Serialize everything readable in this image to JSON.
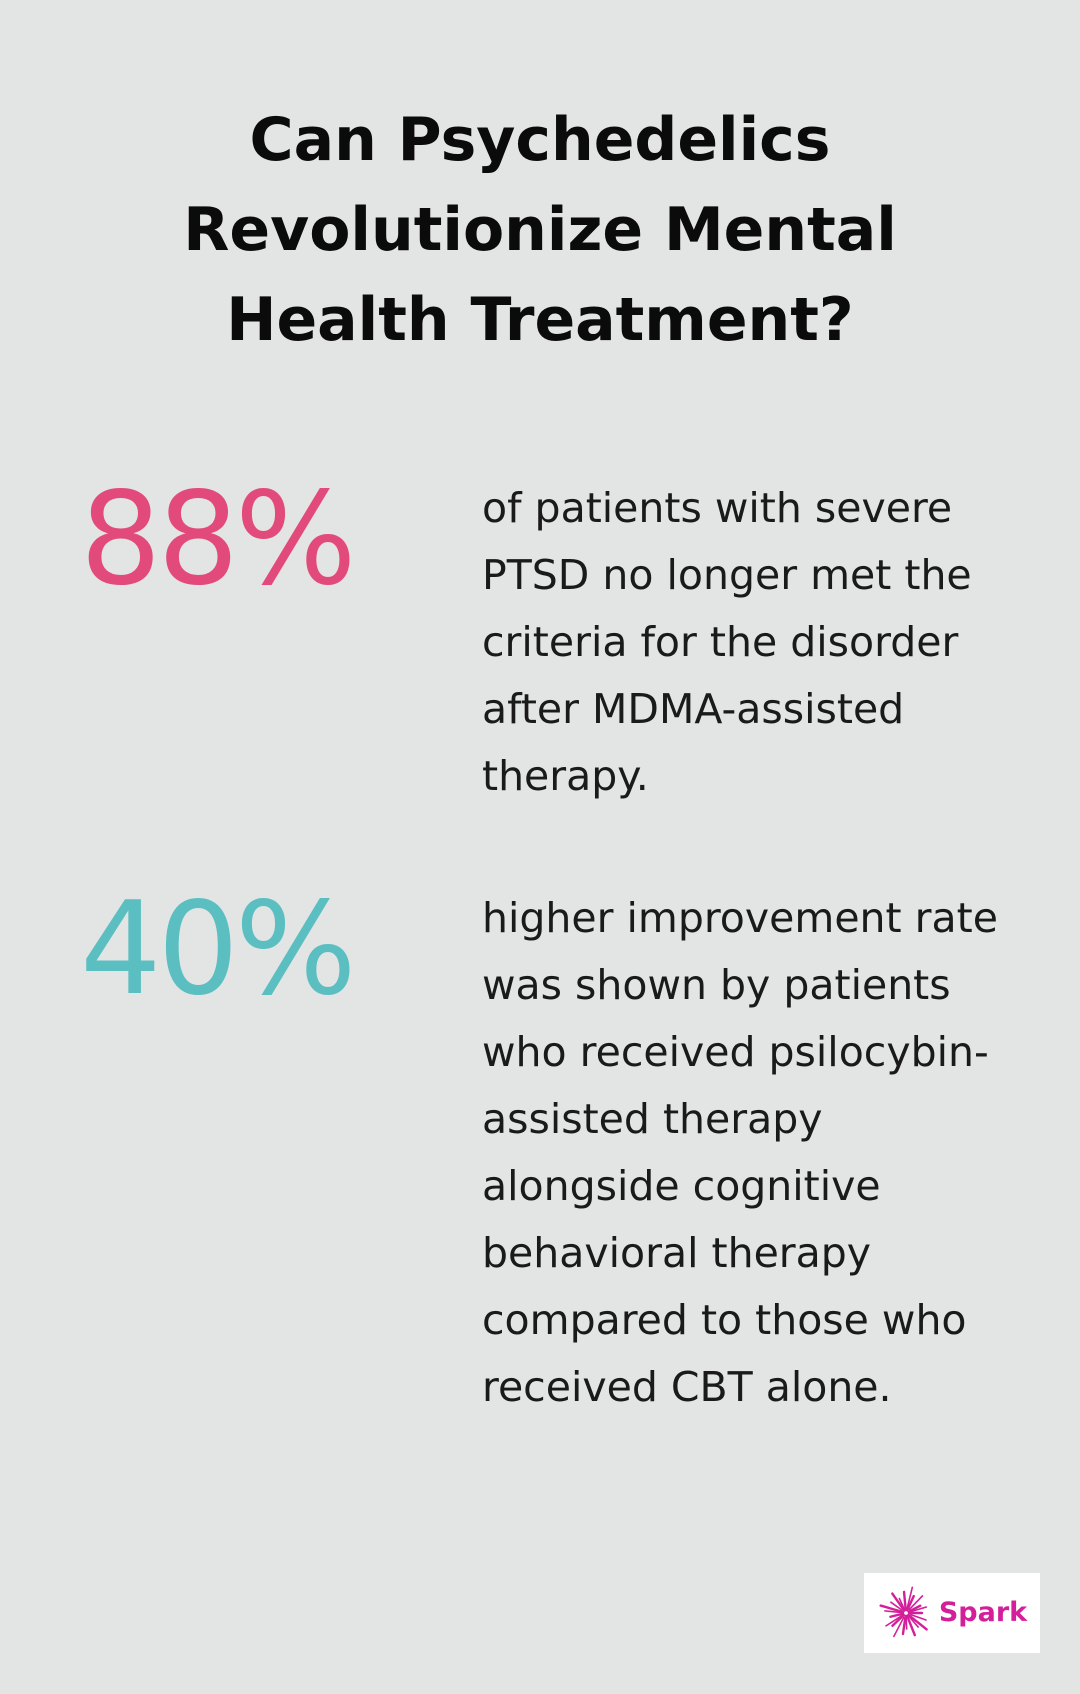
{
  "title": "Can Psychedelics Revolutionize Mental Health Treatment?",
  "stats": [
    {
      "value": "88%",
      "color": "#e24a7c",
      "text": "of patients with severe PTSD no longer met the criteria for the disorder after MDMA-assisted therapy."
    },
    {
      "value": "40%",
      "color": "#5bbfc1",
      "text": "higher improvement rate was shown by patients who received psilocybin-assisted therapy alongside cognitive behavioral therapy compared to those who received CBT alone."
    }
  ],
  "logo": {
    "name": "Spark",
    "color": "#d41f9a",
    "icon": "starburst-icon"
  }
}
